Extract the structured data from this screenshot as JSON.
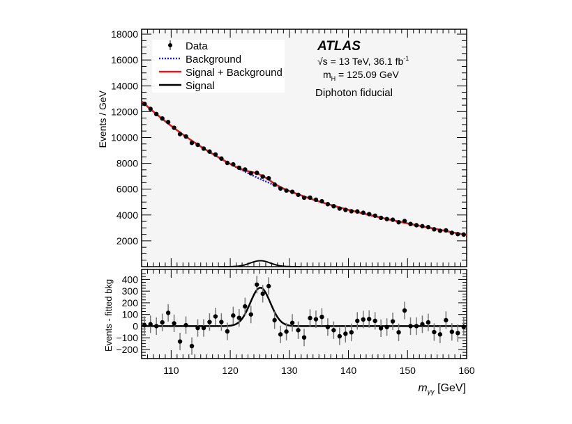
{
  "chart_data": [
    {
      "type": "line",
      "panel": "main",
      "ylabel": "Events / GeV",
      "xlim": [
        105,
        160
      ],
      "ylim": [
        0,
        18380
      ],
      "yticks": [
        2000,
        4000,
        6000,
        8000,
        10000,
        12000,
        14000,
        16000,
        18000
      ],
      "legend_placement": "top-left",
      "legend": [
        {
          "label": "Data",
          "style": "marker",
          "color": "#000000"
        },
        {
          "label": "Background",
          "style": "dotted",
          "color": "#1a1adc"
        },
        {
          "label": "Signal + Background",
          "style": "solid",
          "color": "#e31a1c"
        },
        {
          "label": "Signal",
          "style": "solid",
          "color": "#000000"
        }
      ],
      "background_curve": {
        "x": [
          105,
          110,
          115,
          120,
          125,
          130,
          135,
          140,
          145,
          150,
          155,
          160
        ],
        "y": [
          12800,
          10900,
          9300,
          7950,
          6800,
          5850,
          5050,
          4400,
          3850,
          3350,
          2900,
          2450
        ]
      },
      "signal": {
        "mass": 125.09,
        "width": 1.7,
        "peak": 330
      },
      "data_note_x_bins": {
        "first": 105.5,
        "step": 1,
        "count": 55
      },
      "annotations": {
        "experiment": "ATLAS",
        "energy": "√s = 13 TeV, 36.1 fb",
        "energy_sup": "-1",
        "mass_prefix": "m",
        "mass_sub": "H",
        "mass_value": " = 125.09 GeV",
        "selection": "Diphoton fiducial"
      }
    },
    {
      "type": "scatter",
      "panel": "residual",
      "ylabel": "Events - fitted bkg",
      "xlabel_main": "m",
      "xlabel_sub": "γγ",
      "xlabel_unit": " [GeV]",
      "xlim": [
        105,
        160
      ],
      "ylim": [
        -278,
        486
      ],
      "xticks": [
        110,
        120,
        130,
        140,
        150,
        160
      ],
      "yticks": [
        -200,
        -100,
        0,
        100,
        200,
        300,
        400
      ],
      "x": [
        105.5,
        106.5,
        107.5,
        108.5,
        109.5,
        110.5,
        111.5,
        112.5,
        113.5,
        114.5,
        115.5,
        116.5,
        117.5,
        118.5,
        119.5,
        120.5,
        121.5,
        122.5,
        123.5,
        124.5,
        125.5,
        126.5,
        127.5,
        128.5,
        129.5,
        130.5,
        131.5,
        132.5,
        133.5,
        134.5,
        135.5,
        136.5,
        137.5,
        138.5,
        139.5,
        140.5,
        141.5,
        142.5,
        143.5,
        144.5,
        145.5,
        146.5,
        147.5,
        148.5,
        149.5,
        150.5,
        151.5,
        152.5,
        153.5,
        154.5,
        155.5,
        156.5,
        157.5,
        158.5,
        159.5
      ],
      "residuals": [
        8,
        16,
        0,
        32,
        114,
        24,
        -132,
        8,
        -171,
        -16,
        -16,
        35,
        83,
        35,
        -45,
        91,
        71,
        169,
        100,
        356,
        278,
        343,
        51,
        -71,
        -47,
        28,
        -35,
        -97,
        69,
        59,
        79,
        -8,
        -35,
        -87,
        -65,
        -53,
        45,
        57,
        61,
        45,
        -18,
        -8,
        41,
        -53,
        134,
        0,
        0,
        16,
        32,
        -51,
        -71,
        51,
        -49,
        -59,
        -6
      ],
      "error": 75
    }
  ]
}
